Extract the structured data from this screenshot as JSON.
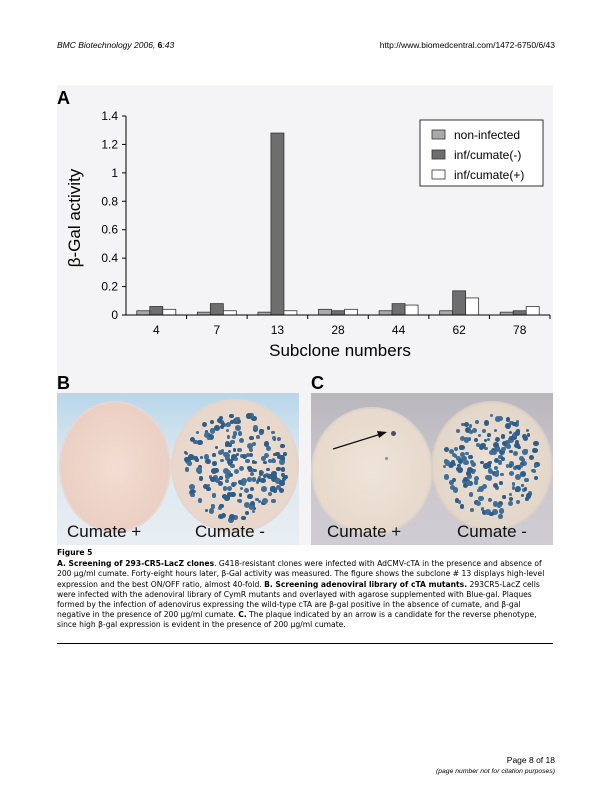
{
  "header": {
    "journal": "BMC Biotechnology",
    "year_issue": "2006, ",
    "volume": "6",
    "article": ":43",
    "url": "http://www.biomedcentral.com/1472-6750/6/43"
  },
  "panels": {
    "a": "A",
    "b": "B",
    "c": "C"
  },
  "chart_data": {
    "type": "bar",
    "categories": [
      "4",
      "7",
      "13",
      "28",
      "44",
      "62",
      "78"
    ],
    "series": [
      {
        "name": "non-infected",
        "values": [
          0.03,
          0.02,
          0.02,
          0.04,
          0.03,
          0.03,
          0.02
        ],
        "color": "#a9a9a9"
      },
      {
        "name": "inf/cumate(-)",
        "values": [
          0.06,
          0.08,
          1.28,
          0.03,
          0.08,
          0.17,
          0.03
        ],
        "color": "#6e6e6e"
      },
      {
        "name": "inf/cumate(+)",
        "values": [
          0.04,
          0.03,
          0.03,
          0.04,
          0.07,
          0.12,
          0.06
        ],
        "color": "#ffffff"
      }
    ],
    "xlabel": "Subclone numbers",
    "ylabel": "β-Gal activity",
    "ylim": [
      0,
      1.4
    ],
    "yticks": [
      "0",
      "0.2",
      "0.4",
      "0.6",
      "0.8",
      "1",
      "1.2",
      "1.4"
    ],
    "grid": false,
    "legend": "top-right"
  },
  "photo_b": {
    "left_label": "Cumate +",
    "right_label": "Cumate -"
  },
  "photo_c": {
    "left_label": "Cumate +",
    "right_label": "Cumate -"
  },
  "caption": {
    "figure_label": "Figure 5",
    "a_title": "A. Screening of 293-CR5-LacZ clones",
    "a_text": ". G418-resistant clones were infected with AdCMV-cTA in the presence and absence of 200 μg/ml cumate. Forty-eight hours later, β-Gal activity was measured. The figure shows the subclone # 13 displays high-level expression and the best ON/OFF ratio, almost 40-fold. ",
    "b_title": "B. Screening adenoviral library of cTA mutants.",
    "b_text": " 293CR5-LacZ cells were infected with the adenoviral library of CymR mutants and overlayed with agarose supplemented with Blue-gal. Plaques formed by the infection of adenovirus expressing the wild-type cTA are β-gal positive in the absence of cumate, and β-gal negative in the presence of 200 μg/ml cumate. ",
    "c_title": "C.",
    "c_text": " The plaque indicated by an arrow is a candidate for the reverse phenotype, since high β-gal expression is evident in the presence of 200 μg/ml cumate."
  },
  "footer": {
    "page": "Page 8 of 18",
    "note": "(page number not for citation purposes)"
  }
}
